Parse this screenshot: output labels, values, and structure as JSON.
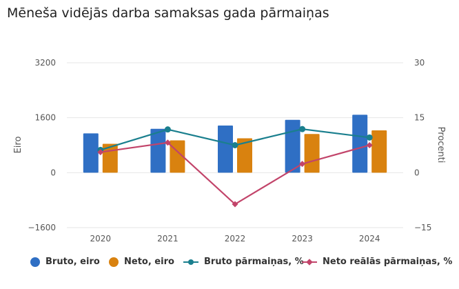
{
  "title": "Mēneša vidējās darba samaksas gada pārmaiņas",
  "colors": {
    "bruto": "#2f6fc4",
    "neto": "#d9820f",
    "bruto_change": "#1a7f8e",
    "neto_real_change": "#c2446a",
    "grid": "#e6e6e6",
    "tick": "#555555"
  },
  "chart_data": {
    "type": "bar",
    "title": "Mēneša vidējās darba samaksas gada pārmaiņas",
    "categories": [
      "2020",
      "2021",
      "2022",
      "2023",
      "2024"
    ],
    "y_left": {
      "label": "Eiro",
      "ticks": [
        "3200",
        "1600",
        "0",
        "−1600"
      ],
      "range": [
        -1600,
        3200
      ]
    },
    "y_right": {
      "label": "Procenti",
      "ticks": [
        "30",
        "15",
        "0",
        "−15"
      ],
      "range": [
        -15,
        30
      ]
    },
    "grid": true,
    "legend_position": "bottom",
    "series": [
      {
        "name": "Bruto, eiro",
        "type": "bar",
        "axis": "left",
        "values": [
          1143,
          1277,
          1373,
          1537,
          1685
        ]
      },
      {
        "name": "Neto, eiro",
        "type": "bar",
        "axis": "left",
        "values": [
          841,
          941,
          1000,
          1127,
          1232
        ]
      },
      {
        "name": "Bruto pārmaiņas, %",
        "type": "line",
        "axis": "right",
        "marker": "circle",
        "values": [
          6.2,
          11.8,
          7.5,
          11.9,
          9.6
        ]
      },
      {
        "name": "Neto reālās pārmaiņas, %",
        "type": "line",
        "axis": "right",
        "marker": "diamond",
        "values": [
          5.6,
          8.2,
          -8.6,
          2.4,
          7.5
        ]
      }
    ]
  }
}
